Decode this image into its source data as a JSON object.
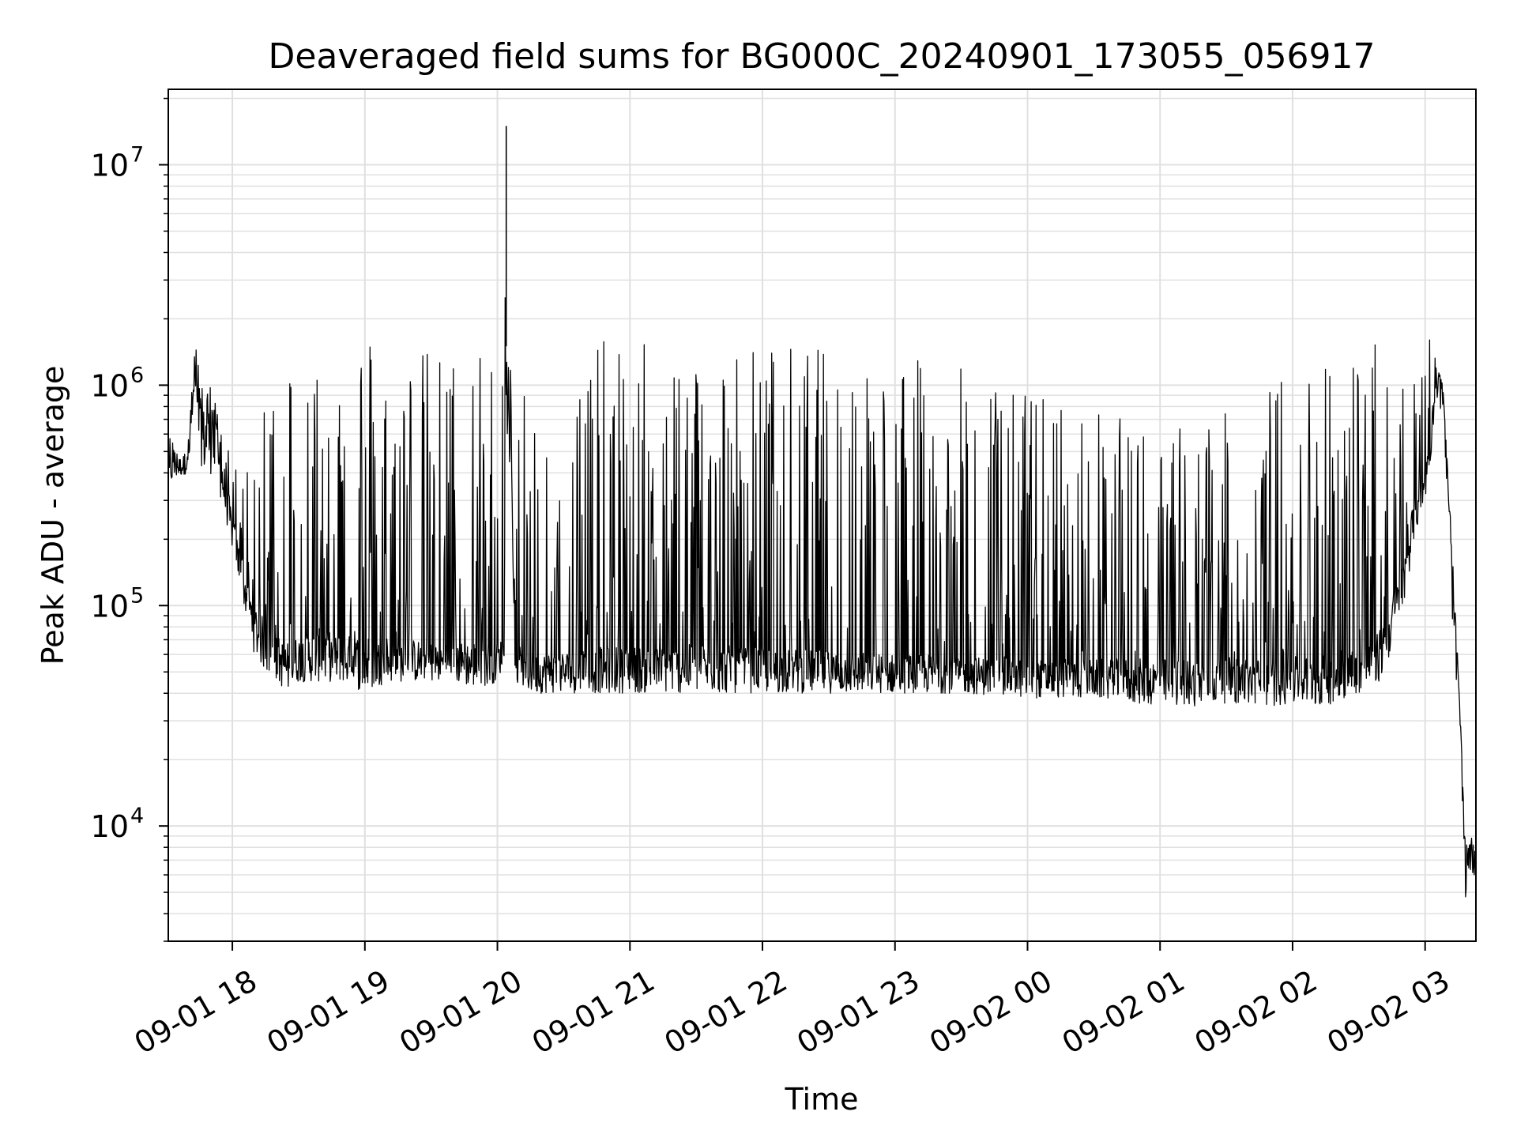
{
  "chart_data": {
    "type": "line",
    "title": "Deaveraged field sums for BG000C_20240901_173055_056917",
    "xlabel": "Time",
    "ylabel": "Peak ADU - average",
    "y_scale": "log",
    "ylim": [
      3000,
      22000000
    ],
    "xlim": [
      "2024-09-01 17:31",
      "2024-09-02 03:23"
    ],
    "grid": true,
    "legend": "none",
    "line_color": "#000000",
    "grid_color": "#e0e0e0",
    "x_ticks": [
      {
        "value": "2024-09-01 18:00",
        "label": "09-01 18"
      },
      {
        "value": "2024-09-01 19:00",
        "label": "09-01 19"
      },
      {
        "value": "2024-09-01 20:00",
        "label": "09-01 20"
      },
      {
        "value": "2024-09-01 21:00",
        "label": "09-01 21"
      },
      {
        "value": "2024-09-01 22:00",
        "label": "09-01 22"
      },
      {
        "value": "2024-09-01 23:00",
        "label": "09-01 23"
      },
      {
        "value": "2024-09-02 00:00",
        "label": "09-02 00"
      },
      {
        "value": "2024-09-02 01:00",
        "label": "09-02 01"
      },
      {
        "value": "2024-09-02 02:00",
        "label": "09-02 02"
      },
      {
        "value": "2024-09-02 03:00",
        "label": "09-02 03"
      }
    ],
    "y_ticks": [
      {
        "value": 10000,
        "base": "10",
        "exp": "4"
      },
      {
        "value": 100000,
        "base": "10",
        "exp": "5"
      },
      {
        "value": 1000000,
        "base": "10",
        "exp": "6"
      },
      {
        "value": 10000000,
        "base": "10",
        "exp": "7"
      }
    ],
    "series": [
      {
        "x": [
          "2024-09-01 17:31",
          "2024-09-01 17:35",
          "2024-09-01 17:40",
          "2024-09-01 17:43",
          "2024-09-01 17:44",
          "2024-09-01 17:47",
          "2024-09-01 17:50",
          "2024-09-01 17:55",
          "2024-09-01 18:00",
          "2024-09-01 18:05",
          "2024-09-01 18:10",
          "2024-09-01 18:15",
          "2024-09-01 18:20",
          "2024-09-01 18:25",
          "2024-09-01 18:30",
          "2024-09-01 18:40",
          "2024-09-01 18:50",
          "2024-09-01 19:00",
          "2024-09-01 19:10",
          "2024-09-01 19:20",
          "2024-09-01 19:30",
          "2024-09-01 19:40",
          "2024-09-01 19:50",
          "2024-09-01 20:00",
          "2024-09-01 20:03",
          "2024-09-01 20:04",
          "2024-09-01 20:06",
          "2024-09-01 20:08",
          "2024-09-01 20:15",
          "2024-09-01 20:30",
          "2024-09-01 20:45",
          "2024-09-01 21:00",
          "2024-09-01 21:15",
          "2024-09-01 21:30",
          "2024-09-01 21:45",
          "2024-09-01 22:00",
          "2024-09-01 22:15",
          "2024-09-01 22:30",
          "2024-09-01 22:45",
          "2024-09-01 23:00",
          "2024-09-01 23:15",
          "2024-09-01 23:30",
          "2024-09-01 23:45",
          "2024-09-02 00:00",
          "2024-09-02 00:15",
          "2024-09-02 00:30",
          "2024-09-02 00:45",
          "2024-09-02 01:00",
          "2024-09-02 01:15",
          "2024-09-02 01:30",
          "2024-09-02 01:45",
          "2024-09-02 02:00",
          "2024-09-02 02:15",
          "2024-09-02 02:30",
          "2024-09-02 02:40",
          "2024-09-02 02:50",
          "2024-09-02 02:55",
          "2024-09-02 03:00",
          "2024-09-02 03:03",
          "2024-09-02 03:05",
          "2024-09-02 03:08",
          "2024-09-02 03:12",
          "2024-09-02 03:16",
          "2024-09-02 03:18",
          "2024-09-02 03:20",
          "2024-09-02 03:23"
        ],
        "median": [
          450000,
          460000,
          480000,
          1200000,
          900000,
          750000,
          800000,
          500000,
          250000,
          150000,
          100000,
          80000,
          70000,
          65000,
          70000,
          75000,
          70000,
          70000,
          65000,
          68000,
          66000,
          65000,
          67000,
          66000,
          70000,
          900000,
          700000,
          60000,
          58000,
          60000,
          62000,
          63000,
          62000,
          64000,
          63000,
          62000,
          61000,
          60000,
          59000,
          58000,
          58000,
          57000,
          56000,
          55000,
          55000,
          55000,
          55000,
          55000,
          55000,
          56000,
          55000,
          56000,
          57000,
          62000,
          75000,
          150000,
          300000,
          450000,
          700000,
          1200000,
          1000000,
          200000,
          30000,
          8000,
          8000,
          7500
        ],
        "high": [
          600000,
          550000,
          600000,
          1600000,
          1400000,
          1100000,
          1000000,
          700000,
          450000,
          420000,
          380000,
          1300000,
          1600000,
          1700000,
          1700000,
          1600000,
          1600000,
          2100000,
          1600000,
          1500000,
          1500000,
          1500000,
          1500000,
          1500000,
          15000000,
          1500000,
          1200000,
          900000,
          900000,
          1500000,
          1600000,
          1600000,
          1600000,
          1600000,
          1600000,
          1600000,
          1550000,
          1500000,
          1450000,
          1400000,
          1300000,
          1200000,
          1100000,
          1000000,
          900000,
          800000,
          700000,
          650000,
          700000,
          750000,
          900000,
          1300000,
          1600000,
          1600000,
          1600000,
          1600000,
          1600000,
          1600000,
          2000000,
          1300000,
          1000000,
          200000,
          30000,
          9000,
          9000,
          8500
        ],
        "low": [
          350000,
          380000,
          400000,
          900000,
          500000,
          400000,
          400000,
          300000,
          180000,
          100000,
          60000,
          50000,
          45000,
          40000,
          45000,
          45000,
          45000,
          40000,
          45000,
          45000,
          45000,
          45000,
          42000,
          45000,
          55000,
          600000,
          400000,
          45000,
          40000,
          40000,
          40000,
          40000,
          40000,
          40000,
          40000,
          40000,
          40000,
          40000,
          40000,
          40000,
          40000,
          40000,
          39000,
          38000,
          38000,
          38000,
          36000,
          35000,
          35000,
          36000,
          35000,
          35000,
          35000,
          40000,
          45000,
          90000,
          200000,
          300000,
          500000,
          900000,
          700000,
          100000,
          20000,
          4500,
          6000,
          6000
        ]
      }
    ]
  }
}
